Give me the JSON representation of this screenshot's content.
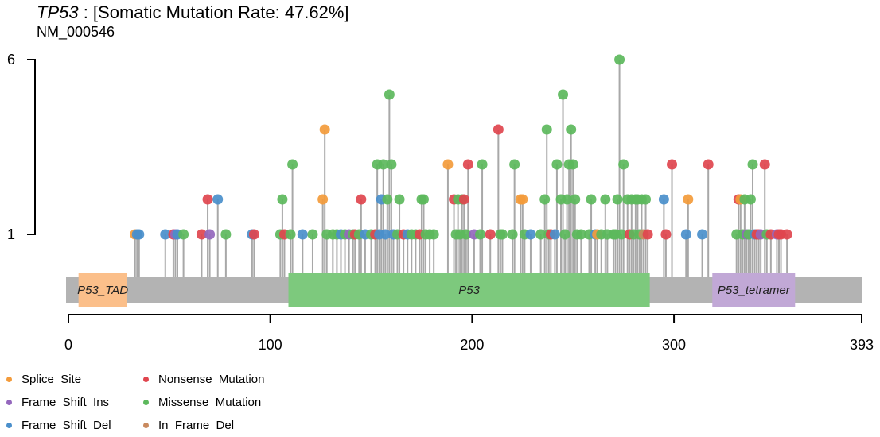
{
  "header": {
    "gene": "TP53",
    "rest": " : [Somatic Mutation Rate: 47.62%]",
    "transcript": "NM_000546"
  },
  "colors": {
    "Splice_Site": "#f39b3b",
    "Frame_Shift_Ins": "#9467bd",
    "Frame_Shift_Del": "#4a8fcb",
    "Nonsense_Mutation": "#e0454e",
    "Missense_Mutation": "#5cb85c",
    "In_Frame_Del": "#c98a5f",
    "backbone": "#b3b3b3",
    "stem": "#a8a8a8"
  },
  "legend": {
    "col1": [
      "Splice_Site",
      "Frame_Shift_Ins",
      "Frame_Shift_Del"
    ],
    "col2": [
      "Nonsense_Mutation",
      "Missense_Mutation",
      "In_Frame_Del"
    ]
  },
  "chart_data": {
    "type": "scatter",
    "subtype": "lollipop",
    "x_range": [
      0,
      393
    ],
    "x_ticks": [
      0,
      100,
      200,
      300,
      393
    ],
    "y_range": [
      1,
      6
    ],
    "y_ticks": [
      1,
      6
    ],
    "domains": [
      {
        "name": "P53_TAD",
        "start": 5,
        "end": 29,
        "color": "#fbbf8a"
      },
      {
        "name": "P53",
        "start": 109,
        "end": 288,
        "color": "#7dc97d"
      },
      {
        "name": "P53_tetramer",
        "start": 319,
        "end": 360,
        "color": "#c1a8d6"
      }
    ],
    "mutations": [
      {
        "pos": 33,
        "count": 1,
        "type": "Splice_Site"
      },
      {
        "pos": 34,
        "count": 1,
        "type": "Frame_Shift_Del"
      },
      {
        "pos": 35,
        "count": 1,
        "type": "Frame_Shift_Del"
      },
      {
        "pos": 48,
        "count": 1,
        "type": "Frame_Shift_Del"
      },
      {
        "pos": 52,
        "count": 1,
        "type": "Nonsense_Mutation"
      },
      {
        "pos": 53,
        "count": 1,
        "type": "Frame_Shift_Ins"
      },
      {
        "pos": 54,
        "count": 1,
        "type": "Frame_Shift_Del"
      },
      {
        "pos": 57,
        "count": 1,
        "type": "Missense_Mutation"
      },
      {
        "pos": 66,
        "count": 1,
        "type": "Nonsense_Mutation"
      },
      {
        "pos": 69,
        "count": 2,
        "type": "Nonsense_Mutation"
      },
      {
        "pos": 70,
        "count": 1,
        "type": "Frame_Shift_Ins"
      },
      {
        "pos": 74,
        "count": 2,
        "type": "Frame_Shift_Del"
      },
      {
        "pos": 78,
        "count": 1,
        "type": "Missense_Mutation"
      },
      {
        "pos": 91,
        "count": 1,
        "type": "Frame_Shift_Del"
      },
      {
        "pos": 92,
        "count": 1,
        "type": "Nonsense_Mutation"
      },
      {
        "pos": 105,
        "count": 1,
        "type": "Missense_Mutation"
      },
      {
        "pos": 106,
        "count": 2,
        "type": "Missense_Mutation"
      },
      {
        "pos": 107,
        "count": 1,
        "type": "Nonsense_Mutation"
      },
      {
        "pos": 110,
        "count": 1,
        "type": "Missense_Mutation"
      },
      {
        "pos": 111,
        "count": 3,
        "type": "Missense_Mutation"
      },
      {
        "pos": 116,
        "count": 1,
        "type": "Frame_Shift_Del"
      },
      {
        "pos": 121,
        "count": 1,
        "type": "Missense_Mutation"
      },
      {
        "pos": 126,
        "count": 2,
        "type": "Splice_Site"
      },
      {
        "pos": 127,
        "count": 4,
        "type": "Splice_Site"
      },
      {
        "pos": 128,
        "count": 1,
        "type": "Missense_Mutation"
      },
      {
        "pos": 131,
        "count": 1,
        "type": "Missense_Mutation"
      },
      {
        "pos": 133,
        "count": 1,
        "type": "Missense_Mutation"
      },
      {
        "pos": 135,
        "count": 1,
        "type": "Frame_Shift_Del"
      },
      {
        "pos": 137,
        "count": 1,
        "type": "Missense_Mutation"
      },
      {
        "pos": 139,
        "count": 1,
        "type": "Frame_Shift_Ins"
      },
      {
        "pos": 141,
        "count": 1,
        "type": "Missense_Mutation"
      },
      {
        "pos": 142,
        "count": 1,
        "type": "Nonsense_Mutation"
      },
      {
        "pos": 144,
        "count": 1,
        "type": "Missense_Mutation"
      },
      {
        "pos": 145,
        "count": 2,
        "type": "Nonsense_Mutation"
      },
      {
        "pos": 147,
        "count": 1,
        "type": "Frame_Shift_Del"
      },
      {
        "pos": 150,
        "count": 1,
        "type": "Missense_Mutation"
      },
      {
        "pos": 152,
        "count": 1,
        "type": "Nonsense_Mutation"
      },
      {
        "pos": 153,
        "count": 3,
        "type": "Missense_Mutation"
      },
      {
        "pos": 154,
        "count": 1,
        "type": "Frame_Shift_Del"
      },
      {
        "pos": 155,
        "count": 2,
        "type": "Frame_Shift_Del"
      },
      {
        "pos": 156,
        "count": 3,
        "type": "Missense_Mutation"
      },
      {
        "pos": 157,
        "count": 1,
        "type": "Frame_Shift_Del"
      },
      {
        "pos": 158,
        "count": 2,
        "type": "Missense_Mutation"
      },
      {
        "pos": 159,
        "count": 5,
        "type": "Missense_Mutation"
      },
      {
        "pos": 160,
        "count": 3,
        "type": "Missense_Mutation"
      },
      {
        "pos": 161,
        "count": 1,
        "type": "Frame_Shift_Del"
      },
      {
        "pos": 163,
        "count": 1,
        "type": "Missense_Mutation"
      },
      {
        "pos": 164,
        "count": 2,
        "type": "Missense_Mutation"
      },
      {
        "pos": 166,
        "count": 1,
        "type": "Nonsense_Mutation"
      },
      {
        "pos": 168,
        "count": 1,
        "type": "Frame_Shift_Del"
      },
      {
        "pos": 170,
        "count": 1,
        "type": "Missense_Mutation"
      },
      {
        "pos": 172,
        "count": 1,
        "type": "Missense_Mutation"
      },
      {
        "pos": 174,
        "count": 1,
        "type": "Nonsense_Mutation"
      },
      {
        "pos": 175,
        "count": 2,
        "type": "Missense_Mutation"
      },
      {
        "pos": 176,
        "count": 2,
        "type": "Missense_Mutation"
      },
      {
        "pos": 177,
        "count": 1,
        "type": "Missense_Mutation"
      },
      {
        "pos": 179,
        "count": 1,
        "type": "Missense_Mutation"
      },
      {
        "pos": 181,
        "count": 1,
        "type": "Missense_Mutation"
      },
      {
        "pos": 188,
        "count": 3,
        "type": "Splice_Site"
      },
      {
        "pos": 191,
        "count": 2,
        "type": "Nonsense_Mutation"
      },
      {
        "pos": 192,
        "count": 1,
        "type": "Missense_Mutation"
      },
      {
        "pos": 193,
        "count": 2,
        "type": "Missense_Mutation"
      },
      {
        "pos": 194,
        "count": 1,
        "type": "Missense_Mutation"
      },
      {
        "pos": 195,
        "count": 2,
        "type": "Missense_Mutation"
      },
      {
        "pos": 196,
        "count": 2,
        "type": "Nonsense_Mutation"
      },
      {
        "pos": 197,
        "count": 1,
        "type": "Missense_Mutation"
      },
      {
        "pos": 198,
        "count": 3,
        "type": "Nonsense_Mutation"
      },
      {
        "pos": 201,
        "count": 1,
        "type": "Frame_Shift_Ins"
      },
      {
        "pos": 204,
        "count": 1,
        "type": "Missense_Mutation"
      },
      {
        "pos": 205,
        "count": 3,
        "type": "Missense_Mutation"
      },
      {
        "pos": 209,
        "count": 1,
        "type": "Nonsense_Mutation"
      },
      {
        "pos": 213,
        "count": 4,
        "type": "Nonsense_Mutation"
      },
      {
        "pos": 214,
        "count": 1,
        "type": "Missense_Mutation"
      },
      {
        "pos": 215,
        "count": 1,
        "type": "Missense_Mutation"
      },
      {
        "pos": 220,
        "count": 1,
        "type": "Missense_Mutation"
      },
      {
        "pos": 221,
        "count": 3,
        "type": "Missense_Mutation"
      },
      {
        "pos": 224,
        "count": 2,
        "type": "Splice_Site"
      },
      {
        "pos": 225,
        "count": 2,
        "type": "Splice_Site"
      },
      {
        "pos": 226,
        "count": 1,
        "type": "Missense_Mutation"
      },
      {
        "pos": 229,
        "count": 1,
        "type": "Frame_Shift_Del"
      },
      {
        "pos": 234,
        "count": 1,
        "type": "Missense_Mutation"
      },
      {
        "pos": 236,
        "count": 2,
        "type": "Missense_Mutation"
      },
      {
        "pos": 237,
        "count": 4,
        "type": "Missense_Mutation"
      },
      {
        "pos": 238,
        "count": 1,
        "type": "Missense_Mutation"
      },
      {
        "pos": 239,
        "count": 1,
        "type": "Nonsense_Mutation"
      },
      {
        "pos": 241,
        "count": 1,
        "type": "Frame_Shift_Del"
      },
      {
        "pos": 242,
        "count": 3,
        "type": "Missense_Mutation"
      },
      {
        "pos": 244,
        "count": 2,
        "type": "Missense_Mutation"
      },
      {
        "pos": 245,
        "count": 5,
        "type": "Missense_Mutation"
      },
      {
        "pos": 246,
        "count": 1,
        "type": "Missense_Mutation"
      },
      {
        "pos": 247,
        "count": 2,
        "type": "Missense_Mutation"
      },
      {
        "pos": 248,
        "count": 3,
        "type": "Missense_Mutation"
      },
      {
        "pos": 249,
        "count": 4,
        "type": "Missense_Mutation"
      },
      {
        "pos": 250,
        "count": 3,
        "type": "Missense_Mutation"
      },
      {
        "pos": 251,
        "count": 2,
        "type": "Missense_Mutation"
      },
      {
        "pos": 252,
        "count": 1,
        "type": "Missense_Mutation"
      },
      {
        "pos": 254,
        "count": 1,
        "type": "Missense_Mutation"
      },
      {
        "pos": 258,
        "count": 1,
        "type": "Missense_Mutation"
      },
      {
        "pos": 259,
        "count": 2,
        "type": "Missense_Mutation"
      },
      {
        "pos": 261,
        "count": 1,
        "type": "Frame_Shift_Del"
      },
      {
        "pos": 262,
        "count": 1,
        "type": "Splice_Site"
      },
      {
        "pos": 264,
        "count": 1,
        "type": "Missense_Mutation"
      },
      {
        "pos": 266,
        "count": 2,
        "type": "Missense_Mutation"
      },
      {
        "pos": 267,
        "count": 1,
        "type": "Missense_Mutation"
      },
      {
        "pos": 270,
        "count": 1,
        "type": "Missense_Mutation"
      },
      {
        "pos": 271,
        "count": 1,
        "type": "Missense_Mutation"
      },
      {
        "pos": 272,
        "count": 2,
        "type": "Missense_Mutation"
      },
      {
        "pos": 273,
        "count": 6,
        "type": "Missense_Mutation"
      },
      {
        "pos": 274,
        "count": 1,
        "type": "Missense_Mutation"
      },
      {
        "pos": 275,
        "count": 3,
        "type": "Missense_Mutation"
      },
      {
        "pos": 277,
        "count": 2,
        "type": "Missense_Mutation"
      },
      {
        "pos": 278,
        "count": 1,
        "type": "Nonsense_Mutation"
      },
      {
        "pos": 279,
        "count": 2,
        "type": "Missense_Mutation"
      },
      {
        "pos": 280,
        "count": 1,
        "type": "Missense_Mutation"
      },
      {
        "pos": 281,
        "count": 2,
        "type": "Missense_Mutation"
      },
      {
        "pos": 282,
        "count": 2,
        "type": "Missense_Mutation"
      },
      {
        "pos": 283,
        "count": 1,
        "type": "Missense_Mutation"
      },
      {
        "pos": 284,
        "count": 2,
        "type": "Missense_Mutation"
      },
      {
        "pos": 285,
        "count": 1,
        "type": "In_Frame_Del"
      },
      {
        "pos": 286,
        "count": 2,
        "type": "Missense_Mutation"
      },
      {
        "pos": 287,
        "count": 1,
        "type": "Nonsense_Mutation"
      },
      {
        "pos": 295,
        "count": 2,
        "type": "Frame_Shift_Del"
      },
      {
        "pos": 296,
        "count": 1,
        "type": "Nonsense_Mutation"
      },
      {
        "pos": 299,
        "count": 3,
        "type": "Nonsense_Mutation"
      },
      {
        "pos": 306,
        "count": 1,
        "type": "Frame_Shift_Del"
      },
      {
        "pos": 307,
        "count": 2,
        "type": "Splice_Site"
      },
      {
        "pos": 314,
        "count": 1,
        "type": "Frame_Shift_Del"
      },
      {
        "pos": 317,
        "count": 3,
        "type": "Nonsense_Mutation"
      },
      {
        "pos": 331,
        "count": 1,
        "type": "Missense_Mutation"
      },
      {
        "pos": 332,
        "count": 2,
        "type": "Nonsense_Mutation"
      },
      {
        "pos": 333,
        "count": 2,
        "type": "Splice_Site"
      },
      {
        "pos": 334,
        "count": 1,
        "type": "Missense_Mutation"
      },
      {
        "pos": 335,
        "count": 2,
        "type": "Missense_Mutation"
      },
      {
        "pos": 336,
        "count": 1,
        "type": "Frame_Shift_Ins"
      },
      {
        "pos": 337,
        "count": 1,
        "type": "Missense_Mutation"
      },
      {
        "pos": 338,
        "count": 2,
        "type": "Missense_Mutation"
      },
      {
        "pos": 339,
        "count": 3,
        "type": "Missense_Mutation"
      },
      {
        "pos": 340,
        "count": 1,
        "type": "Frame_Shift_Del"
      },
      {
        "pos": 341,
        "count": 1,
        "type": "Nonsense_Mutation"
      },
      {
        "pos": 342,
        "count": 1,
        "type": "Nonsense_Mutation"
      },
      {
        "pos": 343,
        "count": 1,
        "type": "Frame_Shift_Ins"
      },
      {
        "pos": 345,
        "count": 3,
        "type": "Nonsense_Mutation"
      },
      {
        "pos": 346,
        "count": 1,
        "type": "Missense_Mutation"
      },
      {
        "pos": 348,
        "count": 1,
        "type": "Nonsense_Mutation"
      },
      {
        "pos": 351,
        "count": 1,
        "type": "Frame_Shift_Ins"
      },
      {
        "pos": 352,
        "count": 1,
        "type": "Nonsense_Mutation"
      },
      {
        "pos": 353,
        "count": 1,
        "type": "Nonsense_Mutation"
      },
      {
        "pos": 356,
        "count": 1,
        "type": "Nonsense_Mutation"
      }
    ]
  }
}
